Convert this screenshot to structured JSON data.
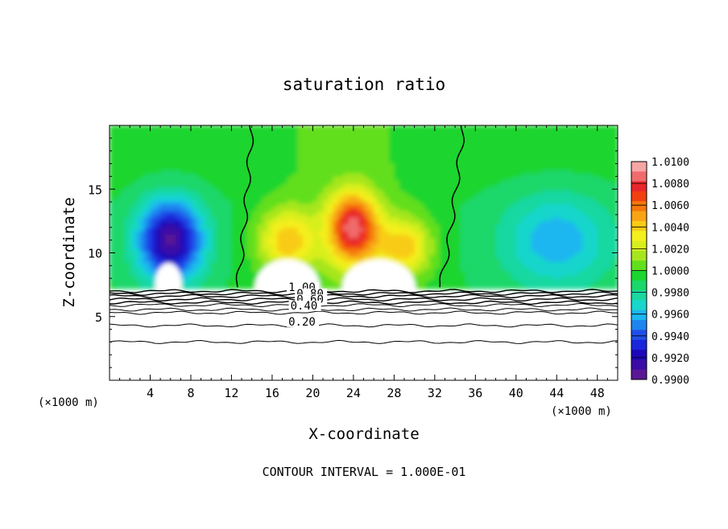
{
  "chart_data": {
    "type": "heatmap",
    "title": "saturation ratio",
    "xlabel": "X-coordinate",
    "ylabel": "Z-coordinate",
    "x_units_left": "(×1000 m)",
    "x_units_right": "(×1000 m)",
    "footnote": "CONTOUR INTERVAL = 1.000E-01",
    "xlim": [
      0,
      50
    ],
    "ylim": [
      0,
      20
    ],
    "x_ticks": [
      4,
      8,
      12,
      16,
      20,
      24,
      28,
      32,
      36,
      40,
      44,
      48
    ],
    "y_ticks": [
      5,
      10,
      15
    ],
    "colorbar": {
      "min": 0.99,
      "max": 1.01,
      "labels": [
        "1.0100",
        "1.0080",
        "1.0060",
        "1.0040",
        "1.0020",
        "1.0000",
        "0.9980",
        "0.9960",
        "0.9940",
        "0.9920",
        "0.9900"
      ],
      "colors": [
        "#f7a6a6",
        "#f06c6c",
        "#e8262b",
        "#f23f0f",
        "#f5780a",
        "#f8a415",
        "#f8cc16",
        "#f4ef1e",
        "#d8ef1d",
        "#a6e61e",
        "#62df1c",
        "#1cd52e",
        "#1ad76a",
        "#19d8a0",
        "#18d6cc",
        "#1cb6f1",
        "#1e85ee",
        "#1f4fe9",
        "#1b25da",
        "#1c08b8",
        "#3a0ca6",
        "#5a1795"
      ]
    },
    "contour_labels": [
      {
        "text": "1.00",
        "x": 17.6,
        "z": 7.0
      },
      {
        "text": "0.80",
        "x": 18.4,
        "z": 6.5
      },
      {
        "text": "0.60",
        "x": 18.4,
        "z": 6.05
      },
      {
        "text": "0.40",
        "x": 17.8,
        "z": 5.55
      },
      {
        "text": "0.20",
        "x": 17.6,
        "z": 4.3
      }
    ],
    "contour_levels": [
      0.1,
      0.2,
      0.3,
      0.4,
      0.5,
      0.6,
      0.7,
      0.8,
      0.9,
      1.0
    ]
  }
}
